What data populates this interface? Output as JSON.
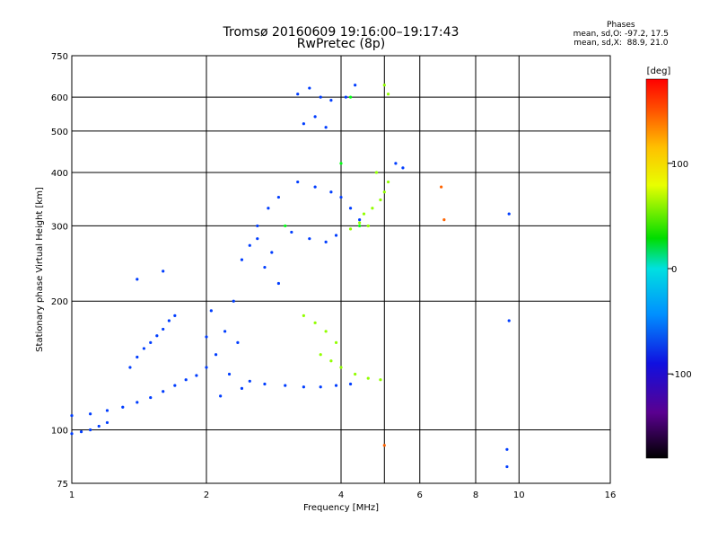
{
  "header": {
    "title_line1": "Tromsø 20160609 19:16:00–19:17:43",
    "title_line2": "RwPretec (8p)",
    "stats_title": "Phases",
    "stats_line1": "mean, sd,O: -97.2, 17.5",
    "stats_line2": "mean, sd,X:  88.9, 21.0"
  },
  "colorbar": {
    "unit": "[deg]",
    "ticks": [
      {
        "value": 100,
        "label": "100"
      },
      {
        "value": 0,
        "label": "0"
      },
      {
        "value": -100,
        "label": "-100"
      }
    ],
    "range": [
      -180,
      180
    ]
  },
  "chart_data": {
    "type": "scatter",
    "title": "Tromsø 20160609 19:16:00–19:17:43",
    "subtitle": "RwPretec (8p)",
    "xlabel": "Frequency [MHz]",
    "ylabel": "Stationary phase Virtual Height [km]",
    "xscale": "log2",
    "yscale": "log",
    "xlim": [
      1,
      16
    ],
    "ylim": [
      75,
      750
    ],
    "xticks": [
      1,
      2,
      4,
      6,
      8,
      10,
      16
    ],
    "xtick_labels": [
      "1",
      "2",
      "4",
      "6",
      "8",
      "10",
      "16"
    ],
    "yticks": [
      75,
      100,
      200,
      300,
      400,
      500,
      600,
      750
    ],
    "ytick_labels": [
      "75",
      "100",
      "200",
      "300",
      "400",
      "500",
      "600",
      "750"
    ],
    "xgrid": [
      2,
      4,
      5,
      6,
      8,
      10
    ],
    "ygrid": [
      100,
      200,
      300,
      400,
      500,
      600
    ],
    "color_variable": "phase [deg]",
    "series": [
      {
        "color_phase": -110,
        "points": [
          [
            1.0,
            98
          ],
          [
            1.05,
            99
          ],
          [
            1.1,
            100
          ],
          [
            1.15,
            102
          ],
          [
            1.2,
            104
          ],
          [
            1.0,
            108
          ],
          [
            1.1,
            109
          ],
          [
            1.2,
            111
          ],
          [
            1.3,
            113
          ],
          [
            1.4,
            116
          ],
          [
            1.5,
            119
          ],
          [
            1.6,
            123
          ],
          [
            1.7,
            127
          ],
          [
            1.8,
            131
          ],
          [
            1.9,
            134
          ],
          [
            1.35,
            140
          ],
          [
            1.4,
            148
          ],
          [
            1.45,
            155
          ],
          [
            1.5,
            160
          ],
          [
            1.55,
            166
          ],
          [
            1.6,
            172
          ],
          [
            1.65,
            180
          ],
          [
            1.7,
            185
          ],
          [
            1.4,
            225
          ],
          [
            1.6,
            235
          ],
          [
            2.0,
            140
          ],
          [
            2.0,
            165
          ],
          [
            2.05,
            190
          ],
          [
            2.1,
            150
          ],
          [
            2.15,
            120
          ],
          [
            2.2,
            170
          ],
          [
            2.25,
            135
          ],
          [
            2.3,
            200
          ],
          [
            2.35,
            160
          ],
          [
            2.4,
            125
          ],
          [
            2.4,
            250
          ],
          [
            2.5,
            270
          ],
          [
            2.6,
            280
          ],
          [
            2.7,
            240
          ],
          [
            2.8,
            260
          ],
          [
            2.9,
            220
          ],
          [
            2.6,
            300
          ],
          [
            2.75,
            330
          ],
          [
            2.9,
            350
          ],
          [
            2.5,
            130
          ],
          [
            2.7,
            128
          ],
          [
            3.0,
            127
          ],
          [
            3.3,
            126
          ],
          [
            3.6,
            126
          ],
          [
            3.9,
            127
          ],
          [
            4.2,
            128
          ],
          [
            3.2,
            380
          ],
          [
            3.5,
            370
          ],
          [
            3.8,
            360
          ],
          [
            4.0,
            350
          ],
          [
            4.2,
            330
          ],
          [
            4.4,
            310
          ],
          [
            3.2,
            610
          ],
          [
            3.4,
            630
          ],
          [
            3.6,
            600
          ],
          [
            3.8,
            590
          ],
          [
            4.1,
            600
          ],
          [
            4.3,
            640
          ],
          [
            3.3,
            520
          ],
          [
            3.5,
            540
          ],
          [
            3.7,
            510
          ],
          [
            3.1,
            290
          ],
          [
            3.4,
            280
          ],
          [
            3.7,
            275
          ],
          [
            3.9,
            285
          ],
          [
            5.3,
            420
          ],
          [
            5.5,
            410
          ],
          [
            9.5,
            320
          ],
          [
            9.5,
            180
          ],
          [
            9.4,
            90
          ],
          [
            9.4,
            82
          ]
        ]
      },
      {
        "color_phase": 70,
        "points": [
          [
            3.3,
            185
          ],
          [
            3.5,
            178
          ],
          [
            3.7,
            170
          ],
          [
            3.9,
            160
          ],
          [
            3.6,
            150
          ],
          [
            3.8,
            145
          ],
          [
            4.0,
            140
          ],
          [
            4.3,
            135
          ],
          [
            4.6,
            132
          ],
          [
            4.9,
            131
          ],
          [
            4.5,
            320
          ],
          [
            4.7,
            330
          ],
          [
            4.9,
            345
          ],
          [
            5.0,
            360
          ],
          [
            5.1,
            380
          ],
          [
            4.8,
            400
          ],
          [
            4.6,
            300
          ],
          [
            4.2,
            295
          ],
          [
            4.4,
            305
          ],
          [
            5.0,
            640
          ],
          [
            5.1,
            610
          ]
        ]
      },
      {
        "color_phase": 20,
        "points": [
          [
            4.0,
            420
          ],
          [
            4.4,
            300
          ],
          [
            3.0,
            300
          ],
          [
            4.2,
            600
          ]
        ]
      },
      {
        "color_phase": 150,
        "points": [
          [
            6.7,
            370
          ],
          [
            6.8,
            310
          ],
          [
            5.0,
            92
          ]
        ]
      }
    ]
  }
}
